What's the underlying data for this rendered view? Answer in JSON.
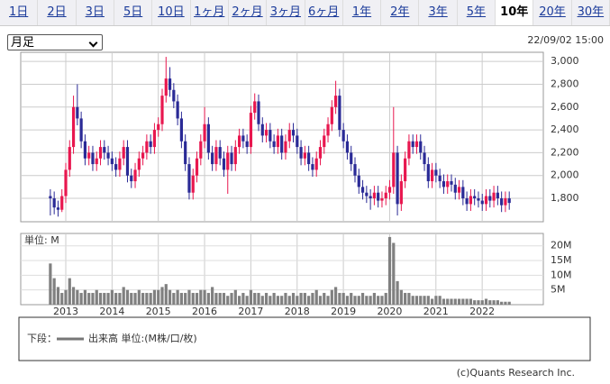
{
  "tabs": [
    "1日",
    "2日",
    "3日",
    "5日",
    "10日",
    "1ヶ月",
    "2ヶ月",
    "3ヶ月",
    "6ヶ月",
    "1年",
    "2年",
    "3年",
    "5年",
    "10年",
    "20年",
    "30年"
  ],
  "selected_tab": 13,
  "period_select": "月足",
  "timestamp": "22/09/02 15:00",
  "legend": {
    "prefix": "下段：",
    "label": "出来高 単位:(M株/口/枚)"
  },
  "copyright": "(c)Quants Research Inc.",
  "chart_data": [
    {
      "type": "candlestick",
      "up_color": "#e8174f",
      "down_color": "#2a2a96",
      "ylim": [
        1595,
        3080
      ],
      "yticks": [
        {
          "value": 1800,
          "label": "1,800"
        },
        {
          "value": 2000,
          "label": "2,000"
        },
        {
          "value": 2200,
          "label": "2,200"
        },
        {
          "value": 2400,
          "label": "2,400"
        },
        {
          "value": 2600,
          "label": "2,600"
        },
        {
          "value": 2800,
          "label": "2,800"
        },
        {
          "value": 3000,
          "label": "3,000"
        }
      ],
      "grid": true,
      "open": [
        1820,
        1800,
        1720,
        1700,
        1820,
        2050,
        2250,
        2600,
        2500,
        2300,
        2150,
        2200,
        2100,
        2150,
        2250,
        2200,
        2150,
        2100,
        2050,
        2150,
        2250,
        2000,
        1950,
        2050,
        2150,
        2200,
        2300,
        2250,
        2400,
        2450,
        2700,
        2850,
        2750,
        2650,
        2500,
        2300,
        2100,
        1850,
        2000,
        2150,
        2300,
        2450,
        2200,
        2100,
        2250,
        2150,
        2050,
        2200,
        2100,
        2250,
        2350,
        2300,
        2250,
        2550,
        2650,
        2450,
        2350,
        2400,
        2300,
        2250,
        2350,
        2200,
        2300,
        2400,
        2350,
        2250,
        2150,
        2200,
        2100,
        2050,
        2150,
        2250,
        2350,
        2450,
        2600,
        2700,
        2400,
        2300,
        2200,
        2100,
        2000,
        1900,
        1850,
        1820,
        1800,
        1850,
        1780,
        1800,
        1850,
        1900,
        2200,
        1750,
        1950,
        2150,
        2300,
        2250,
        2300,
        2200,
        2100,
        1950,
        2050,
        2000,
        1950,
        1900,
        1950,
        1920,
        1850,
        1900,
        1800,
        1750,
        1820,
        1800,
        1780,
        1750,
        1820,
        1780,
        1850,
        1800,
        1740,
        1800
      ],
      "high": [
        1880,
        1860,
        1780,
        1880,
        2110,
        2310,
        2700,
        2800,
        2560,
        2360,
        2260,
        2260,
        2210,
        2310,
        2310,
        2260,
        2210,
        2160,
        2210,
        2310,
        2310,
        2060,
        2110,
        2210,
        2260,
        2360,
        2360,
        2460,
        2510,
        2760,
        3040,
        2950,
        2810,
        2710,
        2560,
        2360,
        2160,
        2060,
        2210,
        2360,
        2600,
        2510,
        2260,
        2310,
        2310,
        2210,
        2260,
        2260,
        2310,
        2410,
        2410,
        2360,
        2610,
        2720,
        2710,
        2510,
        2460,
        2460,
        2360,
        2410,
        2410,
        2360,
        2460,
        2460,
        2410,
        2310,
        2260,
        2260,
        2160,
        2210,
        2310,
        2410,
        2510,
        2660,
        2830,
        2760,
        2460,
        2360,
        2260,
        2160,
        2060,
        1960,
        1910,
        1880,
        1910,
        1910,
        1860,
        1910,
        1960,
        2600,
        2260,
        2010,
        2210,
        2360,
        2360,
        2360,
        2360,
        2260,
        2160,
        2110,
        2110,
        2060,
        2010,
        2010,
        2010,
        1980,
        1960,
        1960,
        1860,
        1880,
        1880,
        1860,
        1840,
        1880,
        1880,
        1910,
        1910,
        1860,
        1860,
        1860
      ],
      "low": [
        1650,
        1660,
        1640,
        1680,
        1760,
        1990,
        2190,
        2440,
        2240,
        2090,
        2090,
        2040,
        2040,
        2090,
        2140,
        2090,
        2040,
        1990,
        1990,
        2090,
        1940,
        1890,
        1890,
        1990,
        2090,
        2140,
        2190,
        2190,
        2340,
        2390,
        2640,
        2690,
        2590,
        2440,
        2240,
        2040,
        1790,
        1790,
        1940,
        2090,
        2240,
        2140,
        2040,
        2040,
        2090,
        1990,
        1840,
        2040,
        2040,
        2190,
        2240,
        2190,
        2190,
        2490,
        2390,
        2290,
        2290,
        2240,
        2190,
        2190,
        2140,
        2140,
        2240,
        2290,
        2190,
        2090,
        2090,
        2040,
        1990,
        1990,
        2090,
        2190,
        2290,
        2390,
        2540,
        2340,
        2240,
        2140,
        2040,
        1940,
        1840,
        1790,
        1760,
        1700,
        1740,
        1720,
        1720,
        1740,
        1790,
        1840,
        1650,
        1690,
        1890,
        2090,
        2190,
        2190,
        2140,
        2040,
        1890,
        1890,
        1940,
        1890,
        1840,
        1840,
        1860,
        1790,
        1790,
        1740,
        1690,
        1690,
        1740,
        1720,
        1690,
        1690,
        1720,
        1720,
        1740,
        1680,
        1680,
        1700
      ],
      "close": [
        1800,
        1720,
        1700,
        1820,
        2050,
        2250,
        2600,
        2500,
        2300,
        2150,
        2200,
        2100,
        2150,
        2250,
        2200,
        2150,
        2100,
        2050,
        2150,
        2250,
        2000,
        1950,
        2050,
        2150,
        2200,
        2300,
        2250,
        2400,
        2450,
        2700,
        2850,
        2750,
        2650,
        2500,
        2300,
        2100,
        1850,
        2000,
        2150,
        2300,
        2450,
        2200,
        2100,
        2250,
        2150,
        2050,
        2200,
        2100,
        2250,
        2350,
        2300,
        2250,
        2550,
        2650,
        2450,
        2350,
        2400,
        2300,
        2250,
        2350,
        2200,
        2300,
        2400,
        2350,
        2250,
        2150,
        2200,
        2100,
        2050,
        2150,
        2250,
        2350,
        2450,
        2600,
        2700,
        2400,
        2300,
        2200,
        2100,
        2000,
        1900,
        1850,
        1820,
        1800,
        1850,
        1780,
        1800,
        1850,
        1900,
        2200,
        1750,
        1950,
        2150,
        2300,
        2250,
        2300,
        2200,
        2100,
        1950,
        2050,
        2000,
        1950,
        1900,
        1950,
        1920,
        1850,
        1900,
        1800,
        1750,
        1820,
        1800,
        1780,
        1750,
        1820,
        1780,
        1850,
        1800,
        1740,
        1800,
        1760
      ]
    },
    {
      "type": "bar",
      "unit_label": "単位: M",
      "color": "#808080",
      "ylim": [
        0,
        24.2
      ],
      "yticks": [
        {
          "value": 5,
          "label": "5M"
        },
        {
          "value": 10,
          "label": "10M"
        },
        {
          "value": 15,
          "label": "15M"
        },
        {
          "value": 20,
          "label": "20M"
        }
      ],
      "x_labels": [
        "2013",
        "2014",
        "2015",
        "2016",
        "2017",
        "2018",
        "2019",
        "2020",
        "2021",
        "2022"
      ],
      "values": [
        14,
        9,
        6,
        4,
        5,
        9,
        6,
        5,
        4,
        5,
        4,
        4,
        5,
        4,
        4,
        4,
        5,
        4,
        4,
        6,
        5,
        4,
        4,
        5,
        4,
        4,
        4,
        5,
        5,
        6,
        7,
        5,
        4,
        5,
        4,
        4,
        5,
        4,
        4,
        5,
        5,
        4,
        6,
        4,
        4,
        4,
        3,
        4,
        5,
        3,
        4,
        3,
        5,
        4,
        4,
        3,
        4,
        3,
        4,
        3,
        3,
        4,
        3,
        4,
        3,
        4,
        4,
        3,
        4,
        5,
        3,
        4,
        3,
        5,
        6,
        4,
        4,
        3,
        4,
        3,
        3,
        4,
        3,
        3,
        4,
        3,
        3,
        4,
        23,
        21,
        8,
        5,
        4,
        4,
        3,
        3,
        3,
        3,
        3,
        2,
        3,
        3,
        2,
        2,
        2,
        2,
        2,
        2,
        2,
        2,
        1.5,
        1.5,
        1.5,
        2,
        1.5,
        1.5,
        1.5,
        1,
        1,
        1
      ]
    }
  ]
}
